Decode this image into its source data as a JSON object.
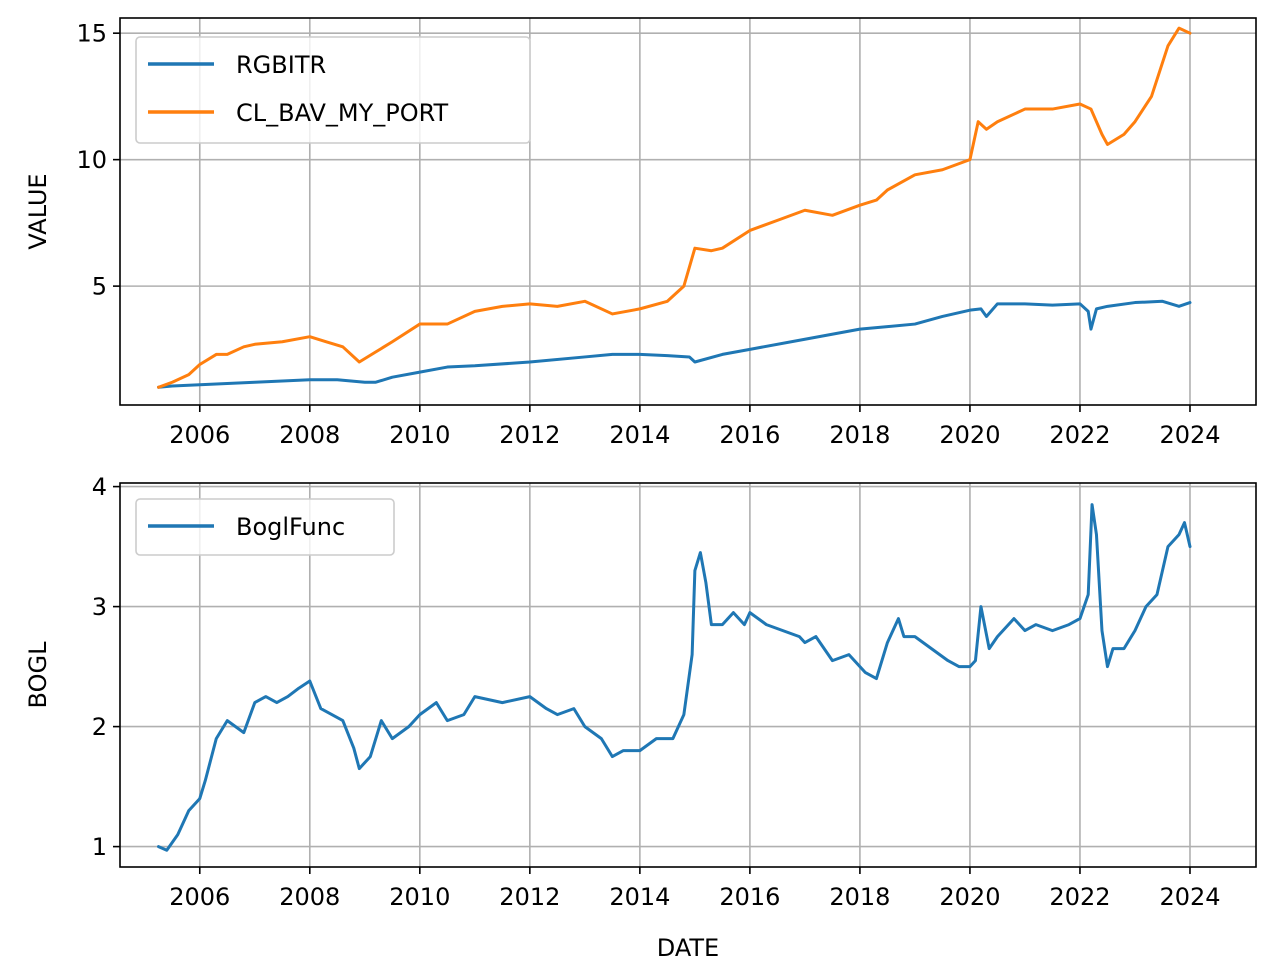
{
  "chart_data": [
    {
      "type": "line",
      "ylabel": "VALUE",
      "xlabel": "",
      "x_ticks": [
        "2006",
        "2008",
        "2010",
        "2012",
        "2014",
        "2016",
        "2018",
        "2020",
        "2022",
        "2024"
      ],
      "y_ticks": [
        "5",
        "10",
        "15"
      ],
      "xlim": [
        2004.55,
        2025.2
      ],
      "ylim": [
        0.3,
        15.6
      ],
      "grid": true,
      "legend_position": "upper-left",
      "series": [
        {
          "name": "RGBITR",
          "color": "#1f77b4",
          "x": [
            2005.25,
            2005.5,
            2006.0,
            2007.0,
            2008.0,
            2008.5,
            2009.0,
            2009.2,
            2009.5,
            2010.0,
            2010.5,
            2011.0,
            2012.0,
            2013.0,
            2013.5,
            2014.0,
            2014.5,
            2014.9,
            2015.0,
            2015.5,
            2016.0,
            2017.0,
            2018.0,
            2018.5,
            2019.0,
            2019.5,
            2020.0,
            2020.2,
            2020.3,
            2020.5,
            2021.0,
            2021.5,
            2022.0,
            2022.15,
            2022.2,
            2022.3,
            2022.5,
            2023.0,
            2023.5,
            2023.8,
            2024.0
          ],
          "y": [
            1.0,
            1.05,
            1.1,
            1.2,
            1.3,
            1.3,
            1.2,
            1.2,
            1.4,
            1.6,
            1.8,
            1.85,
            2.0,
            2.2,
            2.3,
            2.3,
            2.25,
            2.2,
            2.0,
            2.3,
            2.5,
            2.9,
            3.3,
            3.4,
            3.5,
            3.8,
            4.05,
            4.1,
            3.8,
            4.3,
            4.3,
            4.25,
            4.3,
            4.0,
            3.3,
            4.1,
            4.2,
            4.35,
            4.4,
            4.2,
            4.35
          ]
        },
        {
          "name": "CL_BAV_MY_PORT",
          "color": "#ff7f0e",
          "x": [
            2005.25,
            2005.5,
            2005.8,
            2006.0,
            2006.3,
            2006.5,
            2006.8,
            2007.0,
            2007.5,
            2008.0,
            2008.3,
            2008.6,
            2008.9,
            2009.2,
            2009.5,
            2010.0,
            2010.5,
            2011.0,
            2011.5,
            2012.0,
            2012.5,
            2013.0,
            2013.5,
            2014.0,
            2014.5,
            2014.8,
            2015.0,
            2015.3,
            2015.5,
            2016.0,
            2016.5,
            2017.0,
            2017.5,
            2018.0,
            2018.3,
            2018.5,
            2019.0,
            2019.5,
            2020.0,
            2020.15,
            2020.3,
            2020.5,
            2021.0,
            2021.5,
            2022.0,
            2022.2,
            2022.4,
            2022.5,
            2022.8,
            2023.0,
            2023.3,
            2023.6,
            2023.8,
            2024.0
          ],
          "y": [
            1.0,
            1.2,
            1.5,
            1.9,
            2.3,
            2.3,
            2.6,
            2.7,
            2.8,
            3.0,
            2.8,
            2.6,
            2.0,
            2.4,
            2.8,
            3.5,
            3.5,
            4.0,
            4.2,
            4.3,
            4.2,
            4.4,
            3.9,
            4.1,
            4.4,
            5.0,
            6.5,
            6.4,
            6.5,
            7.2,
            7.6,
            8.0,
            7.8,
            8.2,
            8.4,
            8.8,
            9.4,
            9.6,
            10.0,
            11.5,
            11.2,
            11.5,
            12.0,
            12.0,
            12.2,
            12.0,
            11.0,
            10.6,
            11.0,
            11.5,
            12.5,
            14.5,
            15.2,
            15.0
          ]
        }
      ]
    },
    {
      "type": "line",
      "ylabel": "BOGL",
      "xlabel": "DATE",
      "x_ticks": [
        "2006",
        "2008",
        "2010",
        "2012",
        "2014",
        "2016",
        "2018",
        "2020",
        "2022",
        "2024"
      ],
      "y_ticks": [
        "1",
        "2",
        "3",
        "4"
      ],
      "xlim": [
        2004.55,
        2025.2
      ],
      "ylim": [
        0.83,
        4.03
      ],
      "grid": true,
      "legend_position": "upper-left",
      "series": [
        {
          "name": "BoglFunc",
          "color": "#1f77b4",
          "x": [
            2005.25,
            2005.4,
            2005.6,
            2005.8,
            2006.0,
            2006.1,
            2006.3,
            2006.5,
            2006.8,
            2007.0,
            2007.2,
            2007.4,
            2007.6,
            2007.8,
            2008.0,
            2008.2,
            2008.4,
            2008.6,
            2008.8,
            2008.9,
            2009.1,
            2009.3,
            2009.5,
            2009.8,
            2010.0,
            2010.3,
            2010.5,
            2010.8,
            2011.0,
            2011.5,
            2012.0,
            2012.3,
            2012.5,
            2012.8,
            2013.0,
            2013.3,
            2013.5,
            2013.7,
            2014.0,
            2014.3,
            2014.6,
            2014.8,
            2014.95,
            2015.0,
            2015.1,
            2015.2,
            2015.3,
            2015.5,
            2015.7,
            2015.9,
            2016.0,
            2016.3,
            2016.6,
            2016.9,
            2017.0,
            2017.2,
            2017.5,
            2017.8,
            2018.0,
            2018.1,
            2018.3,
            2018.5,
            2018.7,
            2018.8,
            2019.0,
            2019.3,
            2019.6,
            2019.8,
            2020.0,
            2020.1,
            2020.2,
            2020.35,
            2020.5,
            2020.8,
            2021.0,
            2021.2,
            2021.5,
            2021.8,
            2022.0,
            2022.15,
            2022.22,
            2022.3,
            2022.4,
            2022.5,
            2022.6,
            2022.8,
            2023.0,
            2023.2,
            2023.4,
            2023.6,
            2023.8,
            2023.9,
            2024.0
          ],
          "y": [
            1.0,
            0.97,
            1.1,
            1.3,
            1.4,
            1.55,
            1.9,
            2.05,
            1.95,
            2.2,
            2.25,
            2.2,
            2.25,
            2.32,
            2.38,
            2.15,
            2.1,
            2.05,
            1.82,
            1.65,
            1.75,
            2.05,
            1.9,
            2.0,
            2.1,
            2.2,
            2.05,
            2.1,
            2.25,
            2.2,
            2.25,
            2.15,
            2.1,
            2.15,
            2.0,
            1.9,
            1.75,
            1.8,
            1.8,
            1.9,
            1.9,
            2.1,
            2.6,
            3.3,
            3.45,
            3.2,
            2.85,
            2.85,
            2.95,
            2.85,
            2.95,
            2.85,
            2.8,
            2.75,
            2.7,
            2.75,
            2.55,
            2.6,
            2.5,
            2.45,
            2.4,
            2.7,
            2.9,
            2.75,
            2.75,
            2.65,
            2.55,
            2.5,
            2.5,
            2.55,
            3.0,
            2.65,
            2.75,
            2.9,
            2.8,
            2.85,
            2.8,
            2.85,
            2.9,
            3.1,
            3.85,
            3.6,
            2.8,
            2.5,
            2.65,
            2.65,
            2.8,
            3.0,
            3.1,
            3.5,
            3.6,
            3.7,
            3.5
          ]
        }
      ]
    }
  ]
}
